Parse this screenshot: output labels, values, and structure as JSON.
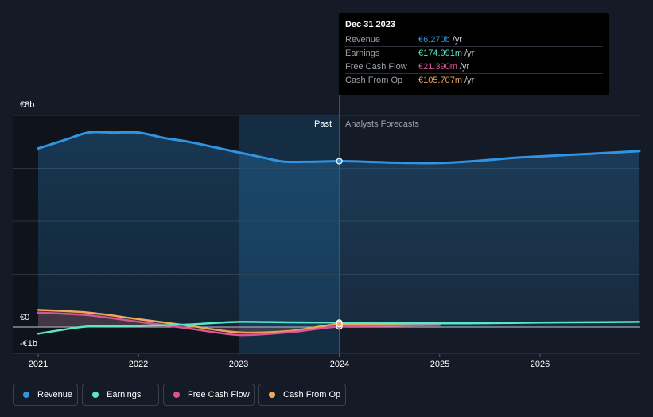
{
  "tooltip": {
    "date": "Dec 31 2023",
    "rows": [
      {
        "label": "Revenue",
        "value": "€6.270b",
        "unit": " /yr",
        "color": "#2f94e2"
      },
      {
        "label": "Earnings",
        "value": "€174.991m",
        "unit": " /yr",
        "color": "#58e7c9"
      },
      {
        "label": "Free Cash Flow",
        "value": "€21.390m",
        "unit": " /yr",
        "color": "#d85593"
      },
      {
        "label": "Cash From Op",
        "value": "€105.707m",
        "unit": " /yr",
        "color": "#f0a85c"
      }
    ]
  },
  "period": {
    "past": "Past",
    "forecast": "Analysts Forecasts"
  },
  "legend": [
    {
      "label": "Revenue",
      "color": "#2f94e2"
    },
    {
      "label": "Earnings",
      "color": "#58e7c9"
    },
    {
      "label": "Free Cash Flow",
      "color": "#d85593"
    },
    {
      "label": "Cash From Op",
      "color": "#f0a85c"
    }
  ],
  "chart_data": {
    "type": "line",
    "title": "",
    "xlabel": "",
    "ylabel": "",
    "x_range": [
      2020.8,
      2026.9
    ],
    "ylim": [
      -1,
      8
    ],
    "y_tick_labels": [
      "€8b",
      "€0",
      "-€1b"
    ],
    "x_tick_labels": [
      "2021",
      "2022",
      "2023",
      "2024",
      "2025",
      "2026"
    ],
    "x_ticks": [
      2021,
      2022,
      2023,
      2024,
      2025,
      2026
    ],
    "gridlines": [
      8,
      6,
      4,
      2,
      0,
      -1
    ],
    "past_forecast_divider": 2024.0,
    "highlight_start": 2023.0,
    "series": [
      {
        "name": "Revenue",
        "color": "#2f94e2",
        "x": [
          2021.0,
          2021.25,
          2021.5,
          2021.75,
          2022.0,
          2022.25,
          2022.5,
          2022.75,
          2023.0,
          2023.25,
          2023.45,
          2023.75,
          2024.0,
          2024.25,
          2024.5,
          2024.75,
          2025.0,
          2025.25,
          2025.5,
          2025.75,
          2026.0,
          2026.5,
          2026.99
        ],
        "values": [
          6.75,
          7.05,
          7.35,
          7.35,
          7.35,
          7.15,
          7.0,
          6.8,
          6.6,
          6.4,
          6.25,
          6.25,
          6.27,
          6.25,
          6.22,
          6.2,
          6.2,
          6.25,
          6.32,
          6.4,
          6.45,
          6.55,
          6.65
        ]
      },
      {
        "name": "Earnings",
        "color": "#58e7c9",
        "x": [
          2021.0,
          2021.25,
          2021.5,
          2022.0,
          2022.5,
          2023.0,
          2023.5,
          2024.0,
          2024.5,
          2025.0,
          2025.5,
          2026.0,
          2026.99
        ],
        "values": [
          -0.25,
          -0.1,
          0.02,
          0.05,
          0.1,
          0.2,
          0.18,
          0.17,
          0.15,
          0.14,
          0.15,
          0.17,
          0.2
        ]
      },
      {
        "name": "Free Cash Flow",
        "color": "#d85593",
        "x": [
          2021.0,
          2021.5,
          2022.0,
          2022.5,
          2023.0,
          2023.5,
          2024.0,
          2024.5,
          2025.0
        ],
        "values": [
          0.55,
          0.45,
          0.2,
          -0.05,
          -0.3,
          -0.2,
          0.02,
          0.05,
          0.08
        ]
      },
      {
        "name": "Cash From Op",
        "color": "#f0a85c",
        "x": [
          2021.0,
          2021.5,
          2022.0,
          2022.5,
          2023.0,
          2023.5,
          2024.0,
          2024.5,
          2025.0
        ],
        "values": [
          0.65,
          0.55,
          0.3,
          0.05,
          -0.2,
          -0.15,
          0.11,
          0.08,
          0.1
        ]
      }
    ]
  }
}
